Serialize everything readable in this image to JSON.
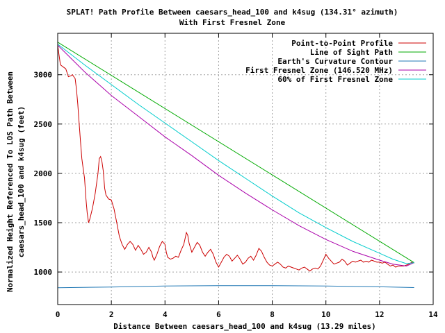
{
  "chart_data": {
    "type": "line",
    "title": "SPLAT! Path Profile Between caesars_head_100 and k4sug (134.31° azimuth)",
    "subtitle": "With First Fresnel Zone",
    "xlabel": "Distance Between caesars_head_100 and k4sug (13.29 miles)",
    "ylabel_line1": "Normalized Height Referenced To LOS Path Between",
    "ylabel_line2": "caesars_head_100 and k4sug (feet)",
    "xlim": [
      0,
      14
    ],
    "ylim": [
      670,
      3420
    ],
    "x_ticks": [
      0,
      2,
      4,
      6,
      8,
      10,
      12,
      14
    ],
    "y_ticks": [
      1000,
      1500,
      2000,
      2500,
      3000
    ],
    "grid": true,
    "legend_position": "top-right",
    "series": [
      {
        "name": "Point-to-Point Profile",
        "color": "#cc0000",
        "points": [
          [
            0,
            3300
          ],
          [
            0.05,
            3200
          ],
          [
            0.1,
            3100
          ],
          [
            0.2,
            3080
          ],
          [
            0.3,
            3060
          ],
          [
            0.4,
            2980
          ],
          [
            0.5,
            2990
          ],
          [
            0.55,
            3000
          ],
          [
            0.65,
            2960
          ],
          [
            0.7,
            2850
          ],
          [
            0.75,
            2700
          ],
          [
            0.8,
            2500
          ],
          [
            0.85,
            2320
          ],
          [
            0.9,
            2150
          ],
          [
            0.95,
            2050
          ],
          [
            1.0,
            1950
          ],
          [
            1.05,
            1750
          ],
          [
            1.1,
            1600
          ],
          [
            1.15,
            1500
          ],
          [
            1.2,
            1540
          ],
          [
            1.3,
            1650
          ],
          [
            1.4,
            1800
          ],
          [
            1.5,
            2000
          ],
          [
            1.55,
            2150
          ],
          [
            1.6,
            2170
          ],
          [
            1.65,
            2120
          ],
          [
            1.7,
            2020
          ],
          [
            1.75,
            1850
          ],
          [
            1.8,
            1780
          ],
          [
            1.9,
            1740
          ],
          [
            2.0,
            1730
          ],
          [
            2.1,
            1640
          ],
          [
            2.2,
            1500
          ],
          [
            2.3,
            1360
          ],
          [
            2.4,
            1280
          ],
          [
            2.5,
            1230
          ],
          [
            2.6,
            1280
          ],
          [
            2.7,
            1310
          ],
          [
            2.8,
            1280
          ],
          [
            2.9,
            1220
          ],
          [
            3.0,
            1270
          ],
          [
            3.1,
            1230
          ],
          [
            3.2,
            1180
          ],
          [
            3.3,
            1200
          ],
          [
            3.4,
            1250
          ],
          [
            3.5,
            1200
          ],
          [
            3.55,
            1150
          ],
          [
            3.6,
            1120
          ],
          [
            3.7,
            1180
          ],
          [
            3.8,
            1260
          ],
          [
            3.9,
            1310
          ],
          [
            4.0,
            1280
          ],
          [
            4.05,
            1200
          ],
          [
            4.1,
            1150
          ],
          [
            4.2,
            1130
          ],
          [
            4.3,
            1140
          ],
          [
            4.4,
            1160
          ],
          [
            4.5,
            1150
          ],
          [
            4.6,
            1220
          ],
          [
            4.7,
            1280
          ],
          [
            4.8,
            1400
          ],
          [
            4.85,
            1370
          ],
          [
            4.9,
            1290
          ],
          [
            5.0,
            1200
          ],
          [
            5.1,
            1250
          ],
          [
            5.2,
            1300
          ],
          [
            5.3,
            1270
          ],
          [
            5.4,
            1200
          ],
          [
            5.5,
            1160
          ],
          [
            5.6,
            1200
          ],
          [
            5.7,
            1230
          ],
          [
            5.8,
            1180
          ],
          [
            5.9,
            1100
          ],
          [
            6.0,
            1050
          ],
          [
            6.1,
            1100
          ],
          [
            6.2,
            1150
          ],
          [
            6.3,
            1180
          ],
          [
            6.4,
            1160
          ],
          [
            6.5,
            1110
          ],
          [
            6.6,
            1140
          ],
          [
            6.7,
            1170
          ],
          [
            6.8,
            1130
          ],
          [
            6.9,
            1080
          ],
          [
            7.0,
            1100
          ],
          [
            7.1,
            1140
          ],
          [
            7.2,
            1160
          ],
          [
            7.3,
            1120
          ],
          [
            7.4,
            1170
          ],
          [
            7.5,
            1240
          ],
          [
            7.6,
            1210
          ],
          [
            7.7,
            1150
          ],
          [
            7.8,
            1100
          ],
          [
            7.9,
            1070
          ],
          [
            8.0,
            1060
          ],
          [
            8.1,
            1080
          ],
          [
            8.2,
            1100
          ],
          [
            8.3,
            1080
          ],
          [
            8.4,
            1050
          ],
          [
            8.5,
            1040
          ],
          [
            8.6,
            1060
          ],
          [
            8.7,
            1050
          ],
          [
            8.8,
            1040
          ],
          [
            8.9,
            1030
          ],
          [
            9.0,
            1020
          ],
          [
            9.1,
            1040
          ],
          [
            9.2,
            1050
          ],
          [
            9.3,
            1030
          ],
          [
            9.4,
            1010
          ],
          [
            9.5,
            1030
          ],
          [
            9.6,
            1040
          ],
          [
            9.7,
            1030
          ],
          [
            9.8,
            1060
          ],
          [
            9.9,
            1120
          ],
          [
            10.0,
            1180
          ],
          [
            10.1,
            1140
          ],
          [
            10.2,
            1110
          ],
          [
            10.3,
            1080
          ],
          [
            10.4,
            1090
          ],
          [
            10.5,
            1100
          ],
          [
            10.6,
            1130
          ],
          [
            10.7,
            1110
          ],
          [
            10.8,
            1070
          ],
          [
            10.9,
            1090
          ],
          [
            11.0,
            1110
          ],
          [
            11.1,
            1100
          ],
          [
            11.2,
            1110
          ],
          [
            11.3,
            1120
          ],
          [
            11.4,
            1100
          ],
          [
            11.5,
            1110
          ],
          [
            11.6,
            1100
          ],
          [
            11.7,
            1120
          ],
          [
            11.8,
            1110
          ],
          [
            11.9,
            1100
          ],
          [
            12.0,
            1100
          ],
          [
            12.1,
            1090
          ],
          [
            12.2,
            1100
          ],
          [
            12.3,
            1080
          ],
          [
            12.4,
            1060
          ],
          [
            12.5,
            1070
          ],
          [
            12.6,
            1050
          ],
          [
            12.7,
            1060
          ],
          [
            12.8,
            1060
          ],
          [
            12.9,
            1060
          ],
          [
            13.0,
            1070
          ],
          [
            13.05,
            1075
          ],
          [
            13.15,
            1090
          ],
          [
            13.2,
            1100
          ],
          [
            13.29,
            1090
          ]
        ]
      },
      {
        "name": "Line of Sight Path",
        "color": "#00aa00",
        "points": [
          [
            0,
            3330
          ],
          [
            13.29,
            1095
          ]
        ]
      },
      {
        "name": "Earth's Curvature Contour",
        "color": "#1f77b4",
        "points": [
          [
            0,
            840
          ],
          [
            2,
            848
          ],
          [
            4,
            858
          ],
          [
            6,
            862
          ],
          [
            8,
            862
          ],
          [
            10,
            858
          ],
          [
            12,
            850
          ],
          [
            13.29,
            842
          ]
        ]
      },
      {
        "name": "First Fresnel Zone (146.520 MHz)",
        "color": "#aa00aa",
        "points": [
          [
            0,
            3300
          ],
          [
            1,
            3030
          ],
          [
            2,
            2790
          ],
          [
            3,
            2580
          ],
          [
            4,
            2370
          ],
          [
            5,
            2180
          ],
          [
            6,
            1980
          ],
          [
            7,
            1800
          ],
          [
            8,
            1630
          ],
          [
            9,
            1470
          ],
          [
            10,
            1330
          ],
          [
            11,
            1210
          ],
          [
            12,
            1120
          ],
          [
            12.5,
            1080
          ],
          [
            13,
            1060
          ],
          [
            13.29,
            1095
          ]
        ]
      },
      {
        "name": "60% of First Fresnel Zone",
        "color": "#00cccc",
        "points": [
          [
            0,
            3310
          ],
          [
            1,
            3100
          ],
          [
            2,
            2900
          ],
          [
            3,
            2700
          ],
          [
            4,
            2510
          ],
          [
            5,
            2320
          ],
          [
            6,
            2130
          ],
          [
            7,
            1950
          ],
          [
            8,
            1770
          ],
          [
            9,
            1600
          ],
          [
            10,
            1450
          ],
          [
            11,
            1310
          ],
          [
            12,
            1190
          ],
          [
            12.5,
            1130
          ],
          [
            13,
            1085
          ],
          [
            13.29,
            1095
          ]
        ]
      }
    ]
  }
}
